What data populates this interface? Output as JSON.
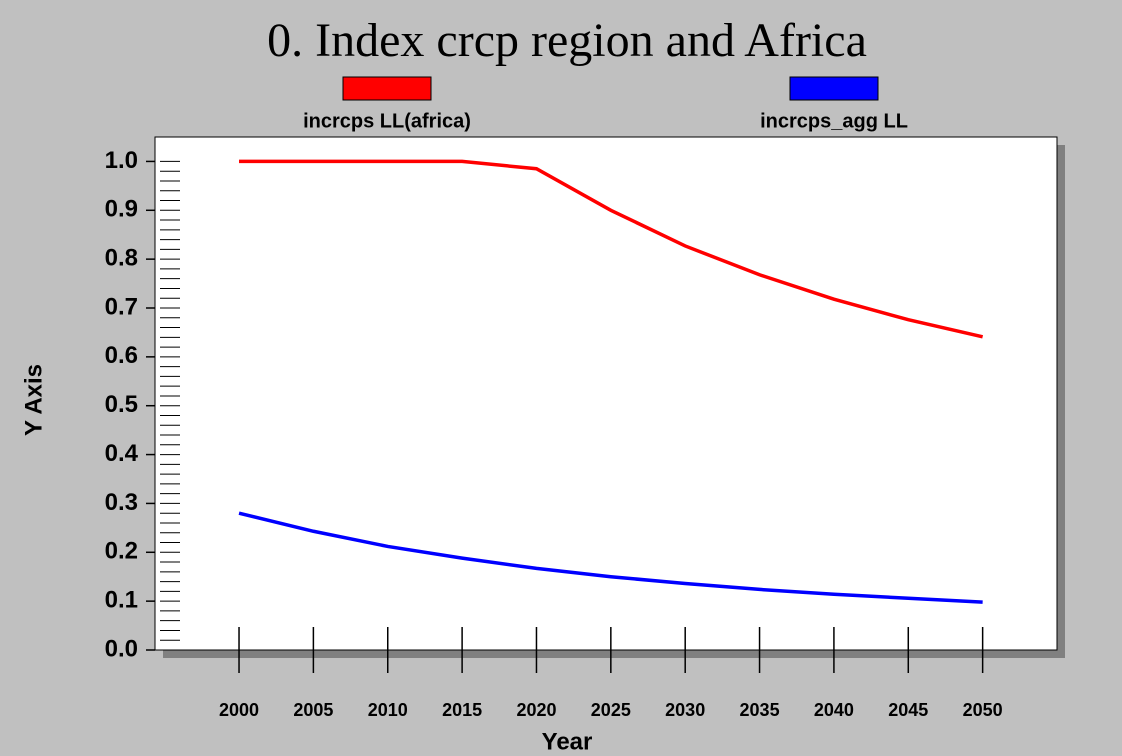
{
  "chart_data": {
    "type": "line",
    "title": "0. Index crcp region and Africa",
    "x": [
      2000,
      2005,
      2010,
      2015,
      2020,
      2025,
      2030,
      2035,
      2040,
      2045,
      2050
    ],
    "series": [
      {
        "name": "incrcps LL(africa)",
        "color": "#ff0000",
        "values": [
          1.0,
          1.0,
          1.0,
          1.0,
          0.985,
          0.9,
          0.827,
          0.768,
          0.718,
          0.676,
          0.641
        ]
      },
      {
        "name": "incrcps_agg LL",
        "color": "#0000ff",
        "values": [
          0.28,
          0.243,
          0.212,
          0.188,
          0.167,
          0.15,
          0.136,
          0.124,
          0.114,
          0.106,
          0.098
        ]
      }
    ],
    "xlabel": "Year",
    "ylabel": "Y Axis",
    "xlim": [
      1994.35,
      2055
    ],
    "xticks": [
      2000,
      2005,
      2010,
      2015,
      2020,
      2025,
      2030,
      2035,
      2040,
      2045,
      2050
    ],
    "ylim": [
      0,
      1.05
    ],
    "yticks": [
      {
        "value": 0,
        "label": "0.0"
      },
      0.1,
      0.2,
      0.3,
      0.4,
      0.5,
      0.6,
      0.7,
      0.8,
      0.9,
      {
        "value": 1,
        "label": "1.0"
      }
    ]
  }
}
